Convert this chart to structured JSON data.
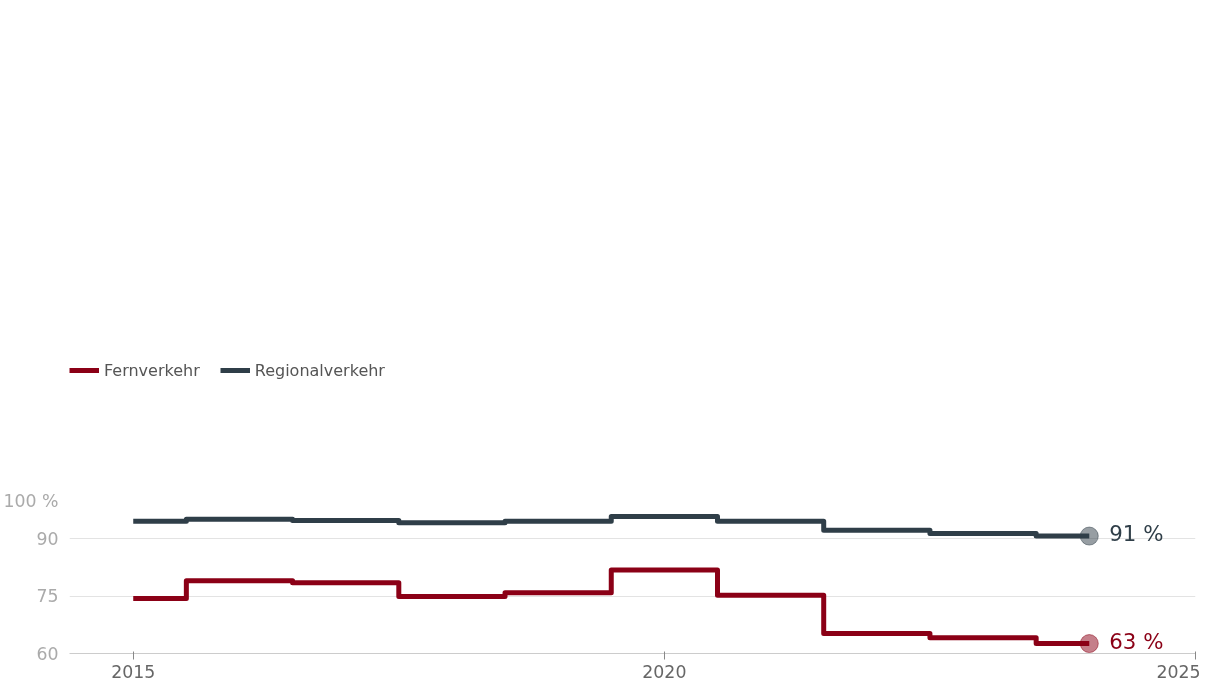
{
  "chart_data": {
    "type": "step",
    "x": [
      2015,
      2016,
      2017,
      2018,
      2019,
      2020,
      2021,
      2022,
      2023,
      2024
    ],
    "series": [
      {
        "name": "Fernverkehr",
        "color": "#8b0016",
        "values": [
          74.4,
          79.0,
          78.5,
          74.9,
          75.9,
          81.8,
          75.2,
          65.2,
          64.1,
          62.6
        ]
      },
      {
        "name": "Regionalverkehr",
        "color": "#2f3e48",
        "values": [
          94.6,
          95.1,
          94.8,
          94.2,
          94.6,
          95.8,
          94.6,
          92.2,
          91.4,
          90.7
        ]
      }
    ],
    "xlim": [
      2014.4,
      2025
    ],
    "xticks": [
      2015,
      2020,
      2025
    ],
    "ylim": [
      60,
      100
    ],
    "yticks": [
      {
        "value": 60,
        "label": "60"
      },
      {
        "value": 75,
        "label": "75"
      },
      {
        "value": 90,
        "label": "90"
      },
      {
        "value": 100,
        "label": "100 %"
      }
    ],
    "annotations": [
      {
        "text": "63 %",
        "x": 2024,
        "y": 62.6
      },
      {
        "text": "91 %",
        "x": 2024,
        "y": 90.7
      }
    ],
    "grid": "y",
    "legend": "top left"
  }
}
